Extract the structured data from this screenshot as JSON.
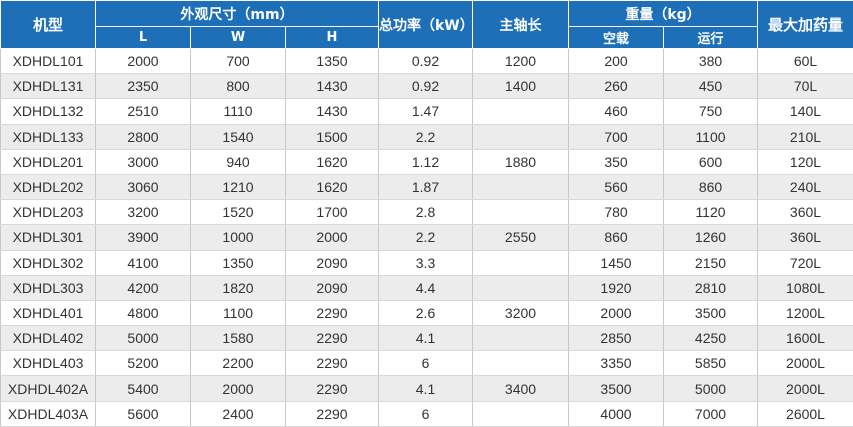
{
  "header": {
    "model": "机型",
    "dimensions": "外观尺寸（mm）",
    "l": "L",
    "w": "W",
    "h": "H",
    "power": "总功率（kW）",
    "spindle": "主轴长",
    "weight": "重量（kg）",
    "empty": "空载",
    "running": "运行",
    "max_dose": "最大加药量"
  },
  "table": {
    "rows": [
      [
        "XDHDL101",
        "2000",
        "700",
        "1350",
        "0.92",
        "1200",
        "200",
        "380",
        "60L"
      ],
      [
        "XDHDL131",
        "2350",
        "800",
        "1430",
        "0.92",
        "1400",
        "260",
        "450",
        "70L"
      ],
      [
        "XDHDL132",
        "2510",
        "1110",
        "1430",
        "1.47",
        null,
        "460",
        "750",
        "140L"
      ],
      [
        "XDHDL133",
        "2800",
        "1540",
        "1500",
        "2.2",
        null,
        "700",
        "1100",
        "210L"
      ],
      [
        "XDHDL201",
        "3000",
        "940",
        "1620",
        "1.12",
        "1880",
        "350",
        "600",
        "120L"
      ],
      [
        "XDHDL202",
        "3060",
        "1210",
        "1620",
        "1.87",
        null,
        "560",
        "860",
        "240L"
      ],
      [
        "XDHDL203",
        "3200",
        "1520",
        "1700",
        "2.8",
        null,
        "780",
        "1120",
        "360L"
      ],
      [
        "XDHDL301",
        "3900",
        "1000",
        "2000",
        "2.2",
        "2550",
        "860",
        "1260",
        "360L"
      ],
      [
        "XDHDL302",
        "4100",
        "1350",
        "2090",
        "3.3",
        null,
        "1450",
        "2150",
        "720L"
      ],
      [
        "XDHDL303",
        "4200",
        "1820",
        "2090",
        "4.4",
        null,
        "1920",
        "2810",
        "1080L"
      ],
      [
        "XDHDL401",
        "4800",
        "1100",
        "2290",
        "2.6",
        "3200",
        "2000",
        "3500",
        "1200L"
      ],
      [
        "XDHDL402",
        "5000",
        "1580",
        "2290",
        "4.1",
        null,
        "2850",
        "4250",
        "1600L"
      ],
      [
        "XDHDL403",
        "5200",
        "2200",
        "2290",
        "6",
        null,
        "3350",
        "5850",
        "2000L"
      ],
      [
        "XDHDL402A",
        "5400",
        "2000",
        "2290",
        "4.1",
        "3400",
        "3500",
        "5000",
        "2000L"
      ],
      [
        "XDHDL403A",
        "5600",
        "2400",
        "2290",
        "6",
        null,
        "4000",
        "7000",
        "2600L"
      ]
    ]
  }
}
